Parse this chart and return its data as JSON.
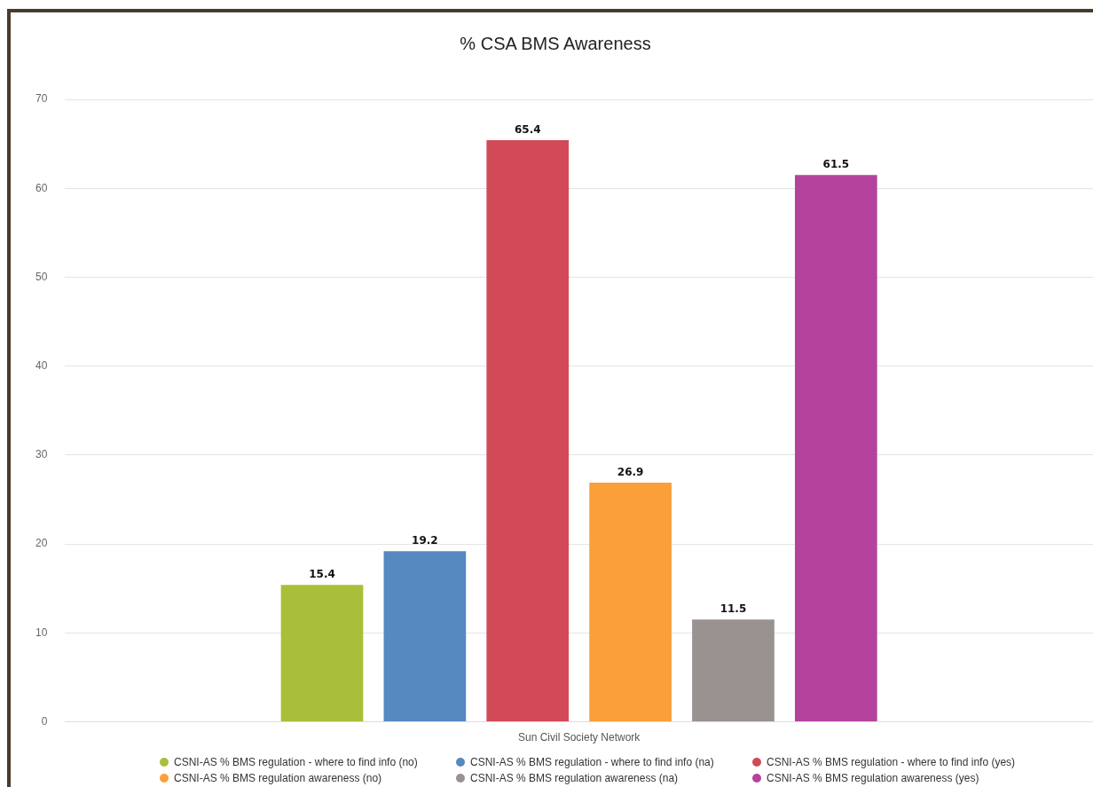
{
  "chart_data": {
    "type": "bar",
    "title": "% CSA BMS Awareness",
    "categories": [
      "Sun Civil Society Network"
    ],
    "series": [
      {
        "name": "CSNI-AS % BMS regulation - where to find info (no)",
        "color": "#a9bf3a",
        "values": [
          15.4
        ]
      },
      {
        "name": "CSNI-AS % BMS regulation - where to find info (na)",
        "color": "#5589bf",
        "values": [
          19.2
        ]
      },
      {
        "name": "CSNI-AS % BMS regulation - where to find info (yes)",
        "color": "#d24a57",
        "values": [
          65.4
        ]
      },
      {
        "name": "CSNI-AS % BMS regulation awareness (no)",
        "color": "#fb9f3a",
        "values": [
          26.9
        ]
      },
      {
        "name": "CSNI-AS % BMS regulation awareness (na)",
        "color": "#9a9191",
        "values": [
          11.5
        ]
      },
      {
        "name": "CSNI-AS % BMS regulation awareness (yes)",
        "color": "#b5439d",
        "values": [
          61.5
        ]
      }
    ],
    "ylim": [
      0,
      70
    ],
    "yticks": [
      0,
      10,
      20,
      30,
      40,
      50,
      60,
      70
    ],
    "grid": "y",
    "legend": "bottom",
    "data_labels": true
  }
}
